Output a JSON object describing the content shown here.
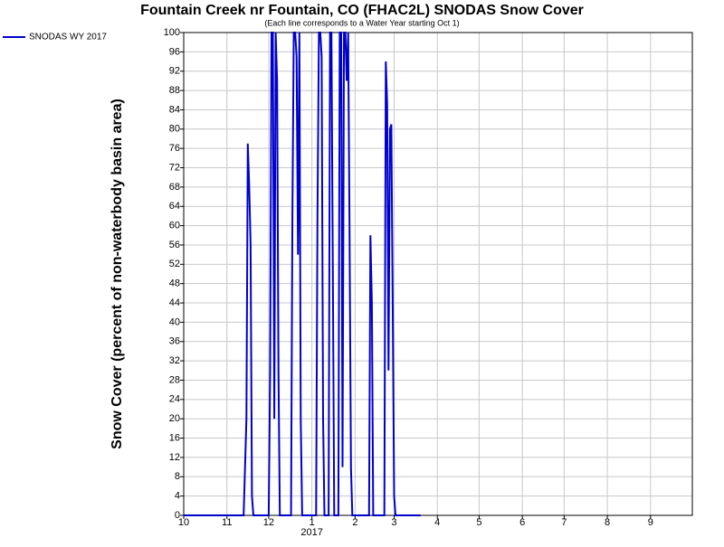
{
  "chart_data": {
    "type": "line",
    "title": "Fountain Creek nr Fountain, CO (FHAC2L) SNODAS Snow Cover",
    "subtitle": "(Each line corresponds to a Water Year starting Oct 1)",
    "y_label": "Snow Cover (percent of non-waterbody basin area)",
    "x_sublabel": "2017",
    "xlim": [
      0,
      365
    ],
    "xticks": [
      {
        "value": 0,
        "label": "10"
      },
      {
        "value": 31,
        "label": "11"
      },
      {
        "value": 61,
        "label": "12"
      },
      {
        "value": 92,
        "label": "1"
      },
      {
        "value": 123,
        "label": "2"
      },
      {
        "value": 151,
        "label": "3"
      },
      {
        "value": 182,
        "label": "4"
      },
      {
        "value": 212,
        "label": "5"
      },
      {
        "value": 243,
        "label": "6"
      },
      {
        "value": 273,
        "label": "7"
      },
      {
        "value": 304,
        "label": "8"
      },
      {
        "value": 335,
        "label": "9"
      }
    ],
    "ylim": [
      0,
      100
    ],
    "yticks": [
      0,
      4,
      8,
      12,
      16,
      20,
      24,
      28,
      32,
      36,
      40,
      44,
      48,
      52,
      56,
      60,
      64,
      68,
      72,
      76,
      80,
      84,
      88,
      92,
      96,
      100
    ],
    "grid": true,
    "legend": "top-left",
    "x": [
      0,
      43,
      45,
      46,
      47,
      48,
      49,
      50,
      61,
      62,
      63,
      64,
      65,
      66,
      67,
      68,
      69,
      77,
      78,
      79,
      80,
      81,
      82,
      83,
      84,
      85,
      95,
      96,
      97,
      98,
      99,
      100,
      101,
      104,
      105,
      106,
      107,
      108,
      111,
      112,
      113,
      114,
      115,
      116,
      117,
      118,
      119,
      120,
      121,
      133,
      134,
      135,
      136,
      144,
      145,
      146,
      147,
      148,
      149,
      150,
      151,
      152,
      170
    ],
    "series": [
      {
        "name": "SNODAS WY 2017",
        "color": "#0000cc",
        "values": [
          0,
          0,
          20,
          77,
          68,
          56,
          4,
          0,
          0,
          30,
          100,
          100,
          20,
          100,
          90,
          30,
          0,
          0,
          62,
          100,
          100,
          95,
          54,
          100,
          20,
          0,
          0,
          62,
          100,
          100,
          95,
          20,
          0,
          0,
          100,
          100,
          50,
          0,
          0,
          100,
          100,
          10,
          100,
          100,
          90,
          100,
          60,
          10,
          0,
          0,
          58,
          44,
          0,
          0,
          94,
          85,
          30,
          80,
          81,
          42,
          4,
          0,
          0
        ]
      }
    ]
  }
}
